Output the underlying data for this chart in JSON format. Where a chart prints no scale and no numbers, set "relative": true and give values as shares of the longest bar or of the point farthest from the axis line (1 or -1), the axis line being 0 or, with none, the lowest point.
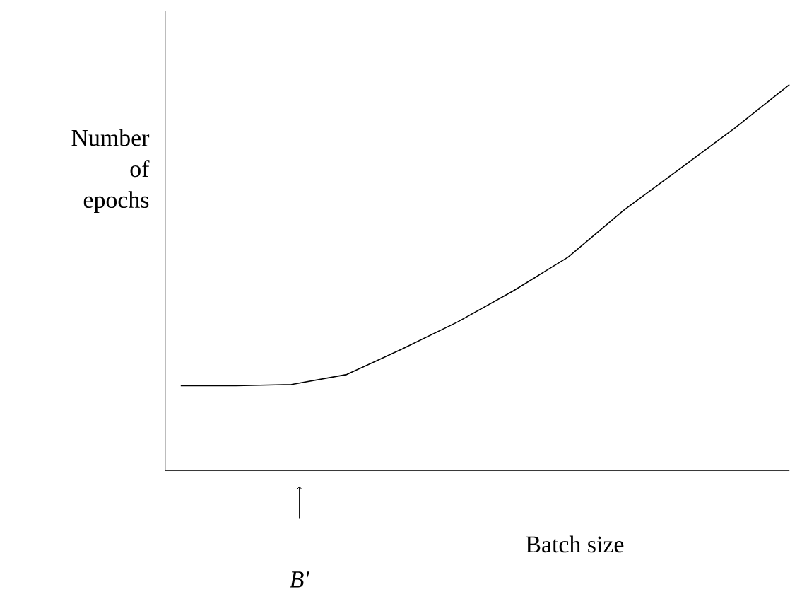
{
  "chart_data": {
    "type": "line",
    "relative": true,
    "ylabel": "Number of epochs",
    "xlabel": "Batch size",
    "categories": [
      null,
      null,
      null,
      null,
      null,
      null,
      null,
      null,
      null,
      null,
      null,
      null
    ],
    "series": [
      {
        "color": "#000000",
        "values": [
          0.22,
          0.22,
          0.223,
          0.249,
          0.315,
          0.385,
          0.465,
          0.553,
          0.674,
          0.78,
          0.886,
          1
        ]
      }
    ],
    "annotations": [
      "B′"
    ]
  }
}
